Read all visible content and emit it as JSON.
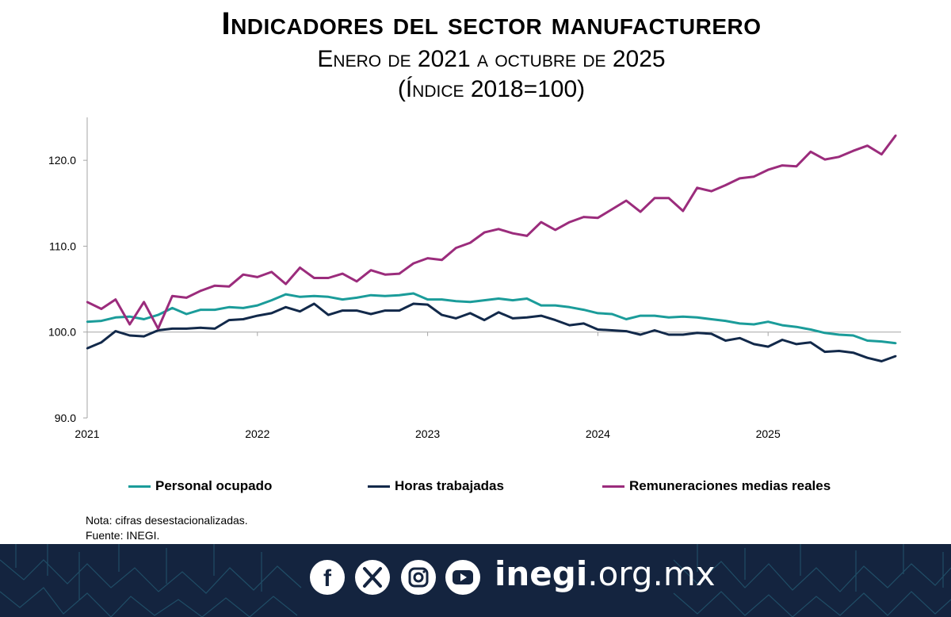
{
  "header": {
    "title": "Indicadores del sector manufacturero",
    "subtitle_line1": "Enero de 2021 a octubre de 2025",
    "subtitle_line2": "(Índice 2018=100)"
  },
  "chart_data": {
    "type": "line",
    "xlabel": "",
    "ylabel": "",
    "ylim": [
      90,
      125
    ],
    "y_ticks": [
      "90.0",
      "100.0",
      "110.0",
      "120.0"
    ],
    "x_tick_labels": [
      "2021",
      "2022",
      "2023",
      "2024",
      "2025"
    ],
    "x_start": "2021-01",
    "grid": false,
    "legend_position": "bottom",
    "series": [
      {
        "name": "Personal ocupado",
        "color": "#1b9c9a",
        "values": [
          101.2,
          101.3,
          101.7,
          101.8,
          101.5,
          102.0,
          102.8,
          102.1,
          102.6,
          102.6,
          102.9,
          102.8,
          103.1,
          103.7,
          104.4,
          104.1,
          104.2,
          104.1,
          103.8,
          104.0,
          104.3,
          104.2,
          104.3,
          104.5,
          103.8,
          103.8,
          103.6,
          103.5,
          103.7,
          103.9,
          103.7,
          103.9,
          103.1,
          103.1,
          102.9,
          102.6,
          102.2,
          102.1,
          101.5,
          101.9,
          101.9,
          101.7,
          101.8,
          101.7,
          101.5,
          101.3,
          101.0,
          100.9,
          101.2,
          100.8,
          100.6,
          100.3,
          99.9,
          99.7,
          99.6,
          99.0,
          98.9,
          98.7
        ]
      },
      {
        "name": "Horas trabajadas",
        "color": "#12294a",
        "values": [
          98.1,
          98.8,
          100.1,
          99.6,
          99.5,
          100.2,
          100.4,
          100.4,
          100.5,
          100.4,
          101.4,
          101.5,
          101.9,
          102.2,
          102.9,
          102.4,
          103.3,
          102.0,
          102.5,
          102.5,
          102.1,
          102.5,
          102.5,
          103.3,
          103.2,
          102.0,
          101.6,
          102.2,
          101.4,
          102.3,
          101.6,
          101.7,
          101.9,
          101.4,
          100.8,
          101.0,
          100.3,
          100.2,
          100.1,
          99.7,
          100.2,
          99.7,
          99.7,
          99.9,
          99.8,
          99.0,
          99.3,
          98.6,
          98.3,
          99.1,
          98.6,
          98.8,
          97.7,
          97.8,
          97.6,
          97.0,
          96.6,
          97.2
        ]
      },
      {
        "name": "Remuneraciones medias reales",
        "color": "#9b2c7c",
        "values": [
          103.5,
          102.7,
          103.8,
          100.9,
          103.5,
          100.4,
          104.2,
          104.0,
          104.8,
          105.4,
          105.3,
          106.7,
          106.4,
          107.0,
          105.6,
          107.5,
          106.3,
          106.3,
          106.8,
          105.9,
          107.2,
          106.7,
          106.8,
          108.0,
          108.6,
          108.4,
          109.8,
          110.4,
          111.6,
          112.0,
          111.5,
          111.2,
          112.8,
          111.9,
          112.8,
          113.4,
          113.3,
          114.3,
          115.3,
          114.0,
          115.6,
          115.6,
          114.1,
          116.8,
          116.4,
          117.1,
          117.9,
          118.1,
          118.9,
          119.4,
          119.3,
          121.0,
          120.1,
          120.4,
          121.1,
          121.7,
          120.7,
          122.9
        ]
      }
    ]
  },
  "notes": {
    "line1": "Nota: cifras desestacionalizadas.",
    "line2": "Fuente: INEGI."
  },
  "footer": {
    "social_icons": [
      "facebook-icon",
      "x-icon",
      "instagram-icon",
      "youtube-icon"
    ],
    "site_bold": "inegi",
    "site_rest": ".org.mx",
    "background": "#14243f"
  }
}
